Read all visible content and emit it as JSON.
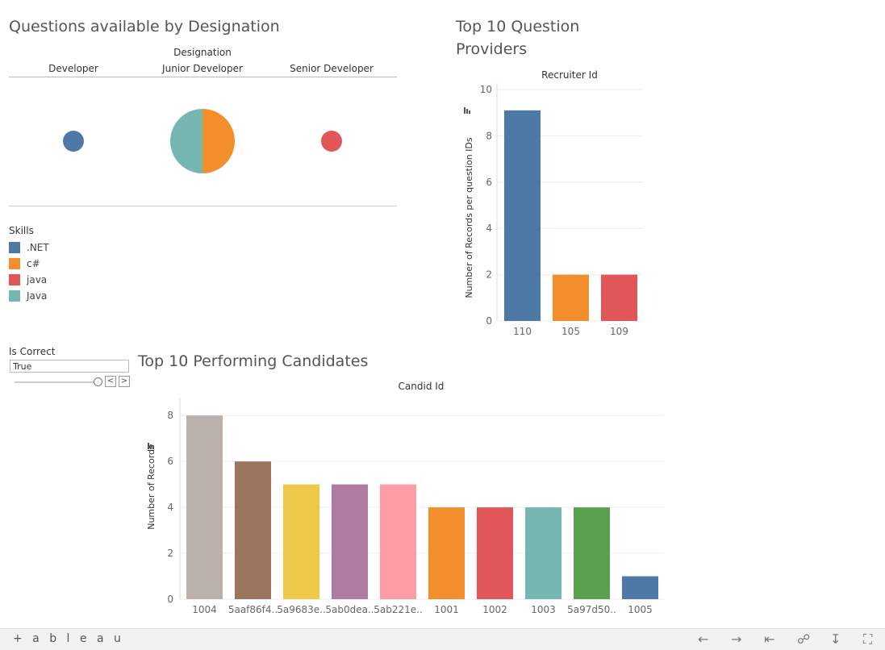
{
  "sections": {
    "designation_title": "Questions available by Designation",
    "providers_title_line1": "Top 10 Question",
    "providers_title_line2": "Providers",
    "candidates_title": "Top 10 Performing Candidates"
  },
  "legend": {
    "title": "Skills",
    "items": [
      {
        "label": ".NET",
        "color": "#4e79a7"
      },
      {
        "label": "c#",
        "color": "#f28e2b"
      },
      {
        "label": "java",
        "color": "#e15759"
      },
      {
        "label": "Java",
        "color": "#76b7b2"
      }
    ]
  },
  "filter": {
    "label": "Is Correct",
    "value": "True",
    "prev": "<",
    "next": ">"
  },
  "footer": {
    "logo": "+ a b l e a u"
  },
  "chart_data": [
    {
      "type": "pie",
      "header": "Designation",
      "categories": [
        "Developer",
        "Junior Developer",
        "Senior Developer"
      ],
      "pies": [
        {
          "category": "Developer",
          "slices": [
            {
              "skill": ".NET",
              "value": 1,
              "color": "#4e79a7"
            }
          ]
        },
        {
          "category": "Junior Developer",
          "slices": [
            {
              "skill": "c#",
              "value": 1,
              "color": "#f28e2b"
            },
            {
              "skill": "Java",
              "value": 1,
              "color": "#76b7b2"
            }
          ]
        },
        {
          "category": "Senior Developer",
          "slices": [
            {
              "skill": "java",
              "value": 1,
              "color": "#e15759"
            }
          ]
        }
      ]
    },
    {
      "type": "bar",
      "header": "Recruiter Id",
      "categories": [
        "110",
        "105",
        "109"
      ],
      "values": [
        9.1,
        2,
        2
      ],
      "colors": [
        "#4e79a7",
        "#f28e2b",
        "#e15759"
      ],
      "ylabel": "Number of Records per question IDs",
      "ylim": [
        0,
        10
      ],
      "yticks": [
        0,
        2,
        4,
        6,
        8,
        10
      ],
      "grid": true
    },
    {
      "type": "bar",
      "header": "Candid Id",
      "categories": [
        "1004",
        "5aaf86f4..",
        "5a9683e..",
        "5ab0dea..",
        "5ab221e..",
        "1001",
        "1002",
        "1003",
        "5a97d50..",
        "1005"
      ],
      "values": [
        8,
        6,
        5,
        5,
        5,
        4,
        4,
        4,
        4,
        1
      ],
      "colors": [
        "#bab0ac",
        "#9c755f",
        "#edc948",
        "#b07aa1",
        "#ff9da7",
        "#f28e2b",
        "#e15759",
        "#76b7b2",
        "#59a14f",
        "#4e79a7"
      ],
      "ylabel": "Number of Records",
      "ylim": [
        0,
        8.5
      ],
      "yticks": [
        0,
        2,
        4,
        6,
        8
      ],
      "grid": true
    }
  ]
}
